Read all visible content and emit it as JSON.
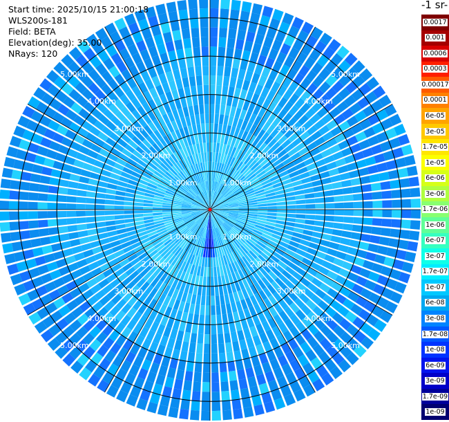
{
  "info": {
    "start_time": "Start time: 2025/10/15 21:00:18",
    "instrument": "WLS200s-181",
    "field": "Field: BETA",
    "elevation": "Elevation(deg): 35.00",
    "nrays": "NRays: 120"
  },
  "colorbar": {
    "unit_label": "-1 sr-",
    "ticks": [
      "0.0017",
      "0.001",
      "0.0006",
      "0.0003",
      "0.00017",
      "0.0001",
      "6e-05",
      "3e-05",
      "1.7e-05",
      "1e-05",
      "6e-06",
      "3e-06",
      "1.7e-06",
      "1e-06",
      "6e-07",
      "3e-07",
      "1.7e-07",
      "1e-07",
      "6e-08",
      "3e-08",
      "1.7e-08",
      "1e-08",
      "6e-09",
      "3e-09",
      "1.7e-09",
      "1e-09"
    ],
    "colors": [
      "#7f0000",
      "#a50000",
      "#d80000",
      "#ff1e00",
      "#ff5a00",
      "#ff8000",
      "#ffa400",
      "#ffc800",
      "#ffe600",
      "#fcff00",
      "#d6ff18",
      "#b0ff40",
      "#88ff70",
      "#60ff98",
      "#36ffc0",
      "#10ffe8",
      "#00eeff",
      "#00c8ff",
      "#00a8f0",
      "#0084ff",
      "#0058ff",
      "#0034ff",
      "#0014ee",
      "#0000c8",
      "#00009a",
      "#000070"
    ]
  },
  "chart_data": {
    "type": "heatmap",
    "subtype": "polar-ppi",
    "nrays": 120,
    "range_max_km": 5.5,
    "range_rings_km": [
      1.0,
      2.0,
      3.0,
      4.0,
      5.0
    ],
    "ring_labels": [
      "1.00km",
      "2.00km",
      "3.00km",
      "4.00km",
      "5.00km"
    ],
    "spokes_deg": [
      0,
      30,
      60,
      90,
      120,
      150,
      180,
      210,
      240,
      270,
      300,
      330
    ],
    "field": "BETA",
    "elevation_deg": 35.0,
    "dominant_value_range": [
      "3e-08",
      "1.7e-07"
    ],
    "grid": true
  }
}
